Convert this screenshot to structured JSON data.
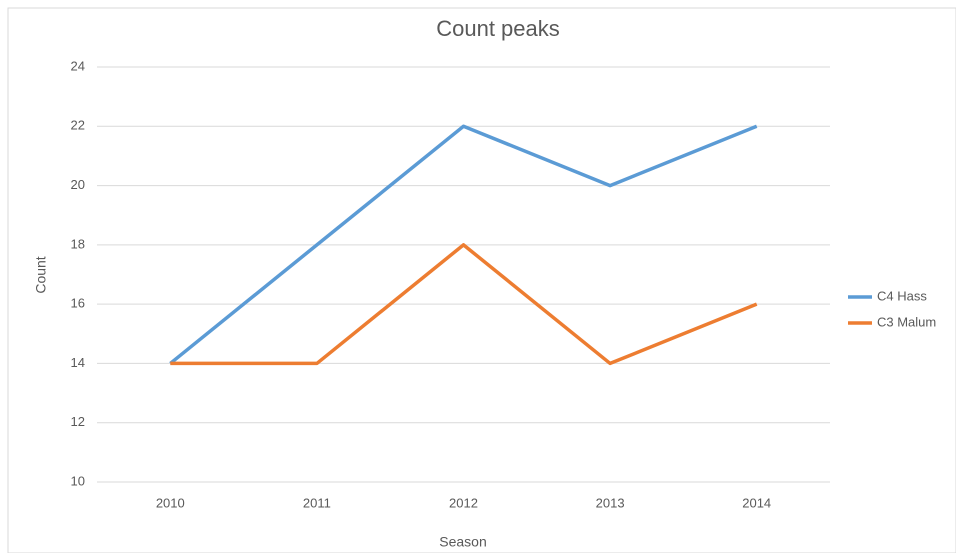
{
  "chart_data": {
    "type": "line",
    "title": "Count peaks",
    "x_label": "Season",
    "y_label": "Count",
    "categories": [
      "2010",
      "2011",
      "2012",
      "2013",
      "2014"
    ],
    "series": [
      {
        "name": "C4 Hass",
        "color": "#5b9bd5",
        "values": [
          14,
          18,
          22,
          20,
          22
        ]
      },
      {
        "name": "C3 Malum",
        "color": "#ed7d31",
        "values": [
          14,
          14,
          18,
          14,
          16
        ]
      }
    ],
    "ylim": [
      10,
      24
    ],
    "yticks": [
      10,
      12,
      14,
      16,
      18,
      20,
      22,
      24
    ],
    "grid": true,
    "legend": "right"
  }
}
